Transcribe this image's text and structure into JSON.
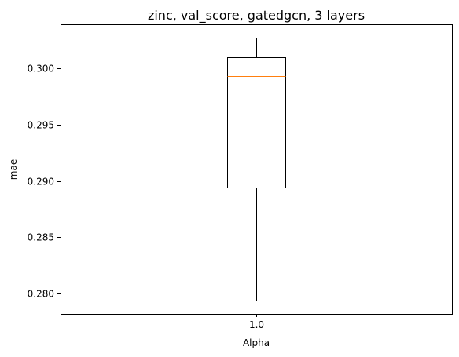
{
  "chart_data": {
    "type": "box",
    "title": "zinc, val_score, gatedgcn, 3 layers",
    "xlabel": "Alpha",
    "ylabel": "mae",
    "categories": [
      "1.0"
    ],
    "boxes": [
      {
        "category": "1.0",
        "whisker_low": 0.2794,
        "q1": 0.2894,
        "median": 0.2993,
        "q3": 0.301,
        "whisker_high": 0.3027
      }
    ],
    "yticks": [
      0.28,
      0.285,
      0.29,
      0.295,
      0.3
    ],
    "ytick_labels": [
      "0.280",
      "0.285",
      "0.290",
      "0.295",
      "0.300"
    ],
    "ylim": [
      0.2782,
      0.3039
    ],
    "grid": false,
    "colors": {
      "box": "#000000",
      "median": "#ff7f0e",
      "whisker": "#000000"
    }
  }
}
